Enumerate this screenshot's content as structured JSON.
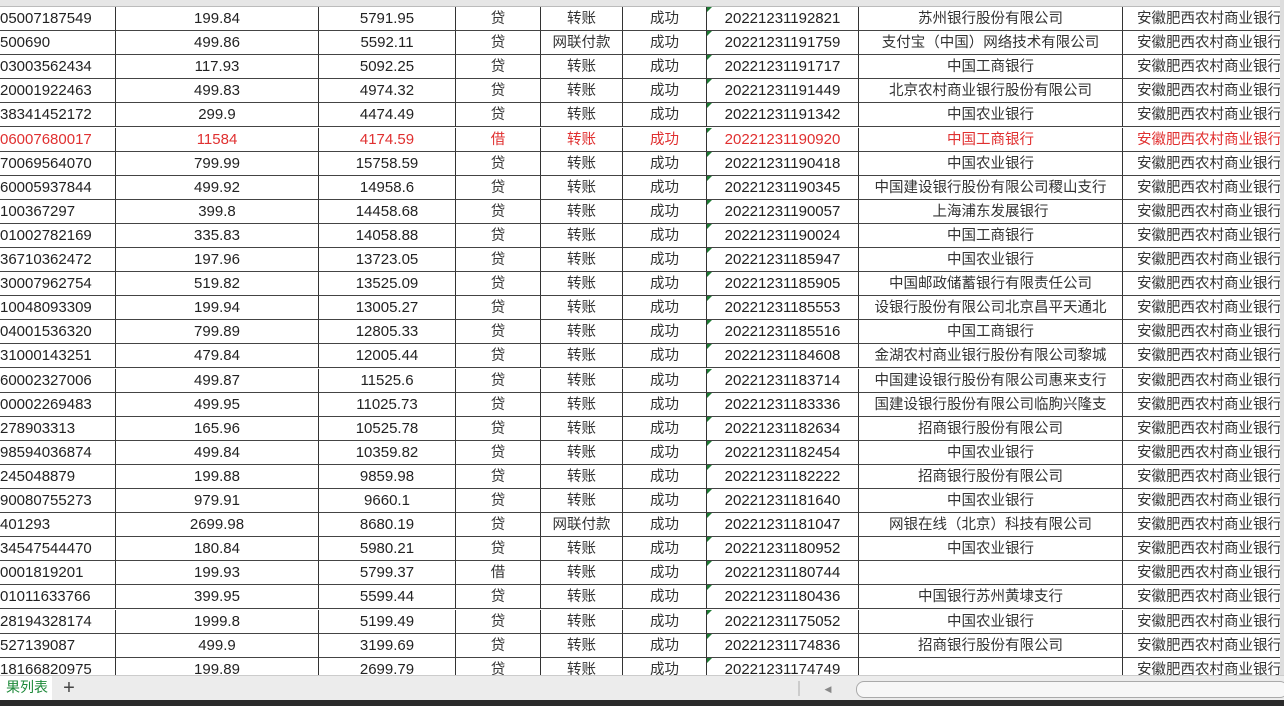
{
  "sheet": {
    "active_tab_label": "果列表",
    "add_sheet_label": "+",
    "highlight_color": "#e03030",
    "rows": [
      {
        "account": "05007187549",
        "amount": "199.84",
        "balance": "5791.95",
        "dc": "贷",
        "type": "转账",
        "status": "成功",
        "time": "20221231192821",
        "counterparty_bank": "苏州银行股份有限公司",
        "bank": "安徽肥西农村商业银行"
      },
      {
        "account": "500690",
        "amount": "499.86",
        "balance": "5592.11",
        "dc": "贷",
        "type": "网联付款",
        "status": "成功",
        "time": "20221231191759",
        "counterparty_bank": "支付宝（中国）网络技术有限公司",
        "bank": "安徽肥西农村商业银行"
      },
      {
        "account": "03003562434",
        "amount": "117.93",
        "balance": "5092.25",
        "dc": "贷",
        "type": "转账",
        "status": "成功",
        "time": "20221231191717",
        "counterparty_bank": "中国工商银行",
        "bank": "安徽肥西农村商业银行"
      },
      {
        "account": "20001922463",
        "amount": "499.83",
        "balance": "4974.32",
        "dc": "贷",
        "type": "转账",
        "status": "成功",
        "time": "20221231191449",
        "counterparty_bank": "北京农村商业银行股份有限公司",
        "bank": "安徽肥西农村商业银行"
      },
      {
        "account": "38341452172",
        "amount": "299.9",
        "balance": "4474.49",
        "dc": "贷",
        "type": "转账",
        "status": "成功",
        "time": "20221231191342",
        "counterparty_bank": "中国农业银行",
        "bank": "安徽肥西农村商业银行"
      },
      {
        "account": "06007680017",
        "amount": "11584",
        "balance": "4174.59",
        "dc": "借",
        "type": "转账",
        "status": "成功",
        "time": "20221231190920",
        "counterparty_bank": "中国工商银行",
        "bank": "安徽肥西农村商业银行",
        "highlight": true
      },
      {
        "account": "70069564070",
        "amount": "799.99",
        "balance": "15758.59",
        "dc": "贷",
        "type": "转账",
        "status": "成功",
        "time": "20221231190418",
        "counterparty_bank": "中国农业银行",
        "bank": "安徽肥西农村商业银行"
      },
      {
        "account": "60005937844",
        "amount": "499.92",
        "balance": "14958.6",
        "dc": "贷",
        "type": "转账",
        "status": "成功",
        "time": "20221231190345",
        "counterparty_bank": "中国建设银行股份有限公司稷山支行",
        "bank": "安徽肥西农村商业银行"
      },
      {
        "account": "100367297",
        "amount": "399.8",
        "balance": "14458.68",
        "dc": "贷",
        "type": "转账",
        "status": "成功",
        "time": "20221231190057",
        "counterparty_bank": "上海浦东发展银行",
        "bank": "安徽肥西农村商业银行"
      },
      {
        "account": "01002782169",
        "amount": "335.83",
        "balance": "14058.88",
        "dc": "贷",
        "type": "转账",
        "status": "成功",
        "time": "20221231190024",
        "counterparty_bank": "中国工商银行",
        "bank": "安徽肥西农村商业银行"
      },
      {
        "account": "36710362472",
        "amount": "197.96",
        "balance": "13723.05",
        "dc": "贷",
        "type": "转账",
        "status": "成功",
        "time": "20221231185947",
        "counterparty_bank": "中国农业银行",
        "bank": "安徽肥西农村商业银行"
      },
      {
        "account": "30007962754",
        "amount": "519.82",
        "balance": "13525.09",
        "dc": "贷",
        "type": "转账",
        "status": "成功",
        "time": "20221231185905",
        "counterparty_bank": "中国邮政储蓄银行有限责任公司",
        "bank": "安徽肥西农村商业银行"
      },
      {
        "account": "10048093309",
        "amount": "199.94",
        "balance": "13005.27",
        "dc": "贷",
        "type": "转账",
        "status": "成功",
        "time": "20221231185553",
        "counterparty_bank": "设银行股份有限公司北京昌平天通北",
        "bank": "安徽肥西农村商业银行"
      },
      {
        "account": "04001536320",
        "amount": "799.89",
        "balance": "12805.33",
        "dc": "贷",
        "type": "转账",
        "status": "成功",
        "time": "20221231185516",
        "counterparty_bank": "中国工商银行",
        "bank": "安徽肥西农村商业银行"
      },
      {
        "account": "31000143251",
        "amount": "479.84",
        "balance": "12005.44",
        "dc": "贷",
        "type": "转账",
        "status": "成功",
        "time": "20221231184608",
        "counterparty_bank": "金湖农村商业银行股份有限公司黎城",
        "bank": "安徽肥西农村商业银行"
      },
      {
        "account": "60002327006",
        "amount": "499.87",
        "balance": "11525.6",
        "dc": "贷",
        "type": "转账",
        "status": "成功",
        "time": "20221231183714",
        "counterparty_bank": "中国建设银行股份有限公司惠来支行",
        "bank": "安徽肥西农村商业银行"
      },
      {
        "account": "00002269483",
        "amount": "499.95",
        "balance": "11025.73",
        "dc": "贷",
        "type": "转账",
        "status": "成功",
        "time": "20221231183336",
        "counterparty_bank": "国建设银行股份有限公司临朐兴隆支",
        "bank": "安徽肥西农村商业银行"
      },
      {
        "account": "278903313",
        "amount": "165.96",
        "balance": "10525.78",
        "dc": "贷",
        "type": "转账",
        "status": "成功",
        "time": "20221231182634",
        "counterparty_bank": "招商银行股份有限公司",
        "bank": "安徽肥西农村商业银行"
      },
      {
        "account": "98594036874",
        "amount": "499.84",
        "balance": "10359.82",
        "dc": "贷",
        "type": "转账",
        "status": "成功",
        "time": "20221231182454",
        "counterparty_bank": "中国农业银行",
        "bank": "安徽肥西农村商业银行"
      },
      {
        "account": "245048879",
        "amount": "199.88",
        "balance": "9859.98",
        "dc": "贷",
        "type": "转账",
        "status": "成功",
        "time": "20221231182222",
        "counterparty_bank": "招商银行股份有限公司",
        "bank": "安徽肥西农村商业银行"
      },
      {
        "account": "90080755273",
        "amount": "979.91",
        "balance": "9660.1",
        "dc": "贷",
        "type": "转账",
        "status": "成功",
        "time": "20221231181640",
        "counterparty_bank": "中国农业银行",
        "bank": "安徽肥西农村商业银行"
      },
      {
        "account": "401293",
        "amount": "2699.98",
        "balance": "8680.19",
        "dc": "贷",
        "type": "网联付款",
        "status": "成功",
        "time": "20221231181047",
        "counterparty_bank": "网银在线（北京）科技有限公司",
        "bank": "安徽肥西农村商业银行"
      },
      {
        "account": "34547544470",
        "amount": "180.84",
        "balance": "5980.21",
        "dc": "贷",
        "type": "转账",
        "status": "成功",
        "time": "20221231180952",
        "counterparty_bank": "中国农业银行",
        "bank": "安徽肥西农村商业银行"
      },
      {
        "account": "0001819201",
        "amount": "199.93",
        "balance": "5799.37",
        "dc": "借",
        "type": "转账",
        "status": "成功",
        "time": "20221231180744",
        "counterparty_bank": "",
        "bank": "安徽肥西农村商业银行"
      },
      {
        "account": "01011633766",
        "amount": "399.95",
        "balance": "5599.44",
        "dc": "贷",
        "type": "转账",
        "status": "成功",
        "time": "20221231180436",
        "counterparty_bank": "中国银行苏州黄埭支行",
        "bank": "安徽肥西农村商业银行"
      },
      {
        "account": "28194328174",
        "amount": "1999.8",
        "balance": "5199.49",
        "dc": "贷",
        "type": "转账",
        "status": "成功",
        "time": "20221231175052",
        "counterparty_bank": "中国农业银行",
        "bank": "安徽肥西农村商业银行"
      },
      {
        "account": "527139087",
        "amount": "499.9",
        "balance": "3199.69",
        "dc": "贷",
        "type": "转账",
        "status": "成功",
        "time": "20221231174836",
        "counterparty_bank": "招商银行股份有限公司",
        "bank": "安徽肥西农村商业银行"
      },
      {
        "account": "18166820975",
        "amount": "199.89",
        "balance": "2699.79",
        "dc": "贷",
        "type": "转账",
        "status": "成功",
        "time": "20221231174749",
        "counterparty_bank": "",
        "bank": "安徽肥西农村商业银行"
      }
    ]
  }
}
